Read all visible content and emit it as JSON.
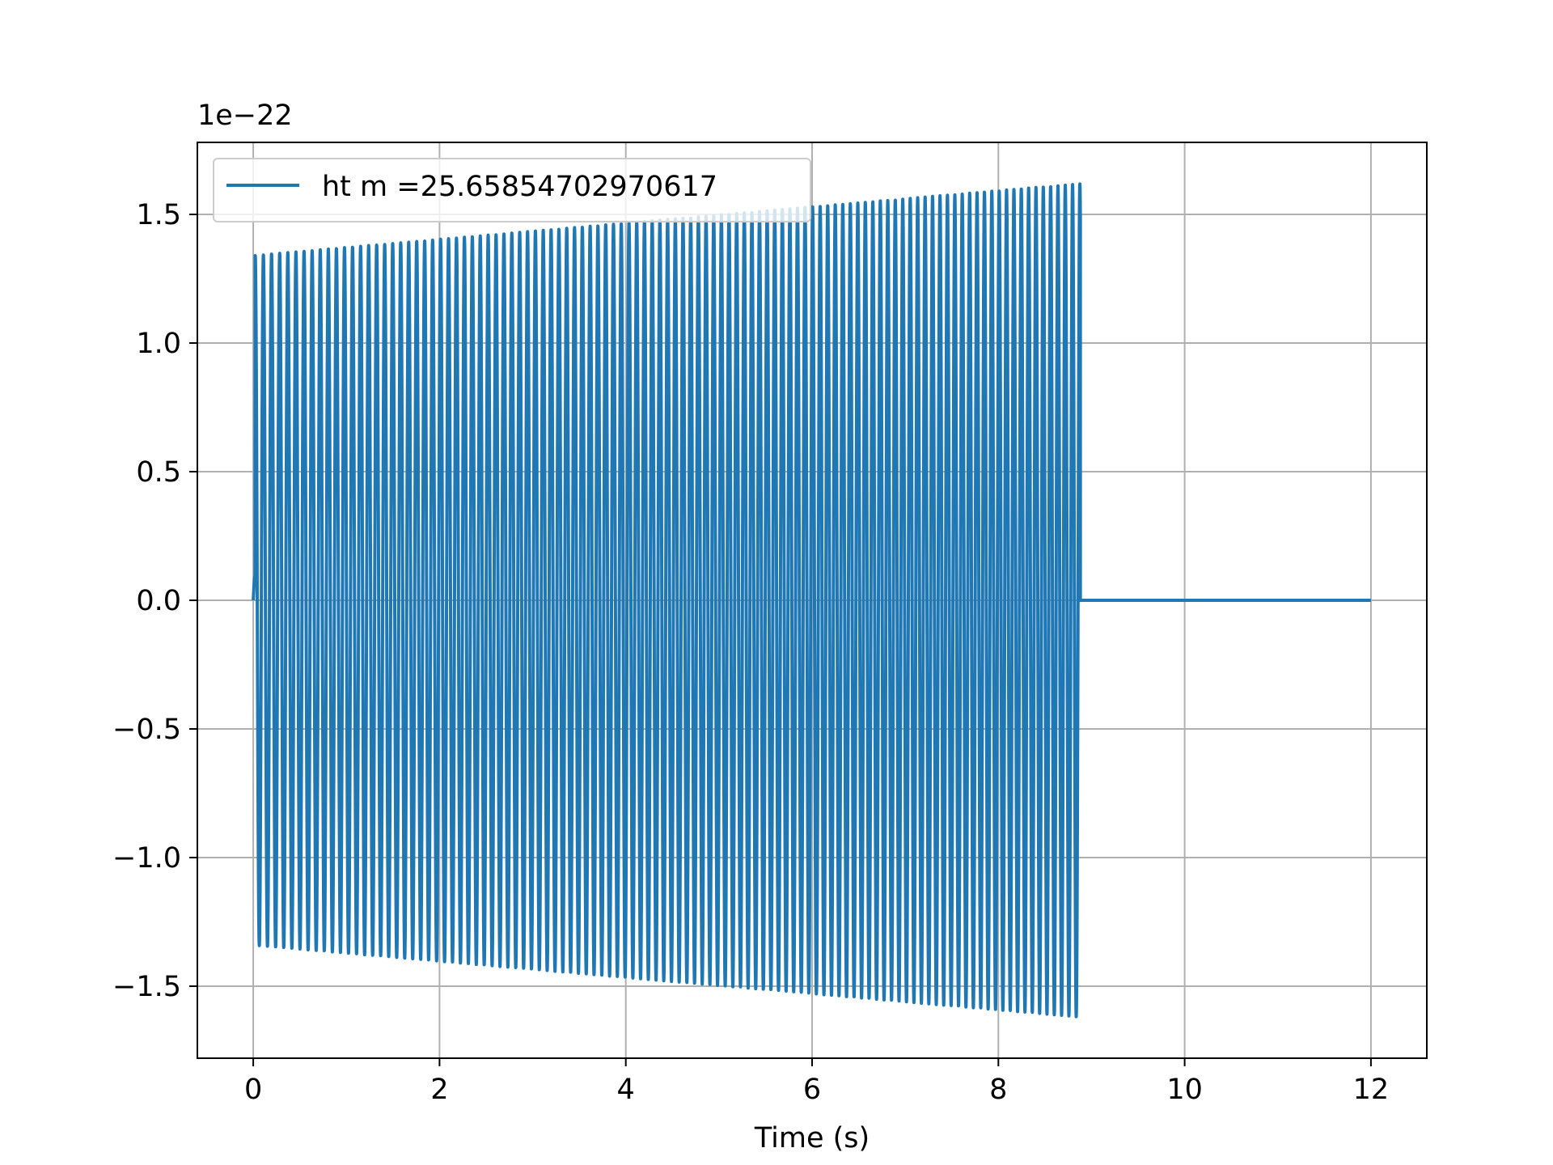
{
  "chart_data": {
    "type": "line",
    "title": "",
    "xlabel": "Time (s)",
    "ylabel": "",
    "y_offset_label": "1e−22",
    "xlim": [
      -0.6,
      12.6
    ],
    "ylim": [
      -1.78,
      1.78
    ],
    "x_ticks": [
      0,
      2,
      4,
      6,
      8,
      10,
      12
    ],
    "x_tick_labels": [
      "0",
      "2",
      "4",
      "6",
      "8",
      "10",
      "12"
    ],
    "y_ticks": [
      -1.5,
      -1.0,
      -0.5,
      0.0,
      0.5,
      1.0,
      1.5
    ],
    "y_tick_labels": [
      "−1.5",
      "−1.0",
      "−0.5",
      "0.0",
      "0.5",
      "1.0",
      "1.5"
    ],
    "grid": true,
    "legend_position": "top-left",
    "series": [
      {
        "name": "ht m =25.65854702970617",
        "color": "#1f77b4",
        "signal": {
          "start_time": 0.0,
          "merger_time": 8.88,
          "end_time": 12.0,
          "start_amplitude": 1.34,
          "end_amplitude": 1.62,
          "cycles_per_second": 11.4,
          "after_merger_value": 0.0
        }
      }
    ]
  }
}
